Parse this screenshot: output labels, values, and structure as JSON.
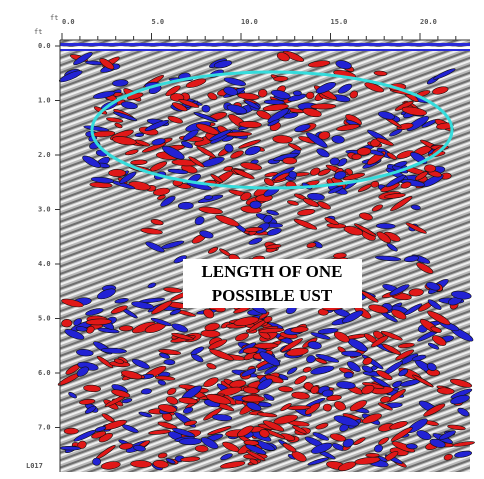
{
  "top_axis": {
    "unit": "ft",
    "ticks": [
      "0.0",
      "5.0",
      "10.0",
      "15.0",
      "20.0"
    ]
  },
  "left_axis": {
    "unit": "ft",
    "ticks": [
      "0.0",
      "1.0",
      "2.0",
      "3.0",
      "4.0",
      "5.0",
      "6.0",
      "7.0"
    ]
  },
  "line_label": "L017",
  "annotation": [
    "LENGTH OF ONE",
    "POSSIBLE UST"
  ]
}
